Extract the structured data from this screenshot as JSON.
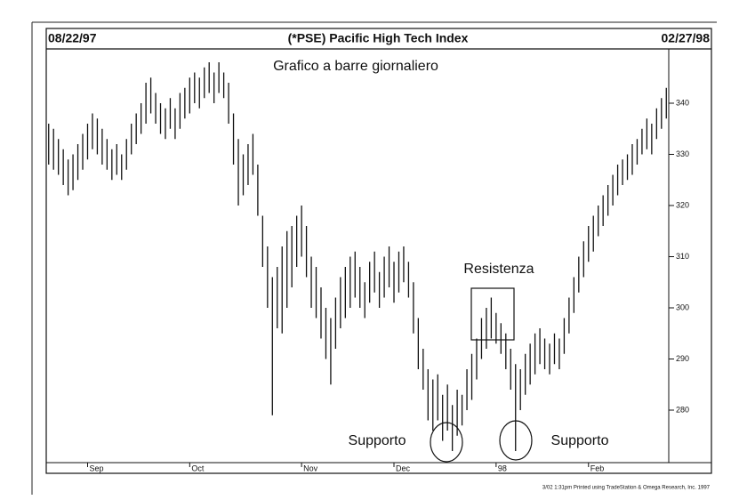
{
  "chart_data": {
    "type": "ohlc",
    "start_date": "08/22/97",
    "title": "(*PSE) Pacific High Tech Index",
    "end_date": "02/27/98",
    "subtitle": "Grafico a barre giornaliero",
    "annotations": [
      "Resistenza",
      "Supporto",
      "Supporto"
    ],
    "footer": "3/02 1:31pm Printed using TradeStation & Omega Research, Inc. 1997",
    "color": "#111111",
    "ylim": [
      270,
      350
    ],
    "yticks": [
      280,
      290,
      300,
      310,
      320,
      330,
      340
    ],
    "xlim": [
      0,
      128
    ],
    "xticks": [
      {
        "value": 8,
        "label": "Sep"
      },
      {
        "value": 29,
        "label": "Oct"
      },
      {
        "value": 52,
        "label": "Nov"
      },
      {
        "value": 71,
        "label": "Dec"
      },
      {
        "value": 92,
        "label": "98"
      },
      {
        "value": 111,
        "label": "Feb"
      }
    ],
    "low": [
      328,
      327,
      326,
      324,
      322,
      323,
      325,
      327,
      329,
      331,
      330,
      328,
      327,
      325,
      326,
      325,
      327,
      330,
      332,
      334,
      336,
      338,
      336,
      334,
      333,
      335,
      333,
      335,
      337,
      338,
      340,
      339,
      341,
      342,
      340,
      342,
      341,
      336,
      328,
      320,
      322,
      324,
      326,
      318,
      308,
      300,
      279,
      296,
      295,
      300,
      304,
      308,
      310,
      306,
      300,
      298,
      294,
      290,
      285,
      292,
      296,
      298,
      300,
      302,
      300,
      298,
      301,
      303,
      300,
      302,
      304,
      301,
      303,
      305,
      302,
      295,
      288,
      284,
      278,
      276,
      278,
      274,
      276,
      272,
      275,
      277,
      280,
      282,
      286,
      290,
      292,
      294,
      293,
      291,
      288,
      284,
      272,
      280,
      283,
      285,
      287,
      289,
      288,
      287,
      289,
      288,
      291,
      295,
      299,
      303,
      306,
      309,
      311,
      314,
      316,
      318,
      320,
      322,
      324,
      325,
      326,
      328,
      330,
      331,
      330,
      333,
      335,
      337
    ],
    "high": [
      336,
      335,
      333,
      331,
      329,
      330,
      332,
      334,
      336,
      338,
      337,
      335,
      333,
      331,
      332,
      330,
      333,
      336,
      338,
      340,
      344,
      345,
      342,
      340,
      339,
      341,
      339,
      342,
      343,
      345,
      346,
      345,
      347,
      348,
      346,
      348,
      346,
      344,
      338,
      333,
      330,
      332,
      334,
      328,
      318,
      312,
      306,
      308,
      312,
      315,
      316,
      318,
      320,
      316,
      310,
      308,
      304,
      300,
      298,
      302,
      306,
      308,
      310,
      311,
      308,
      305,
      309,
      311,
      307,
      310,
      312,
      309,
      311,
      312,
      309,
      305,
      298,
      292,
      288,
      286,
      287,
      283,
      285,
      281,
      284,
      283,
      288,
      291,
      294,
      298,
      300,
      302,
      299,
      297,
      295,
      292,
      289,
      288,
      291,
      293,
      295,
      296,
      294,
      293,
      295,
      294,
      298,
      302,
      306,
      310,
      313,
      316,
      318,
      320,
      322,
      324,
      326,
      328,
      329,
      330,
      332,
      333,
      335,
      337,
      336,
      339,
      341,
      343
    ]
  }
}
